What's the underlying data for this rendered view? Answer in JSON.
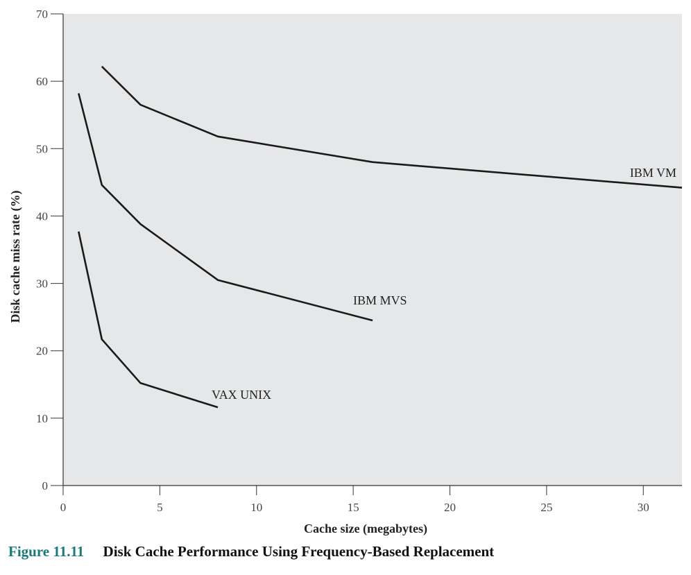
{
  "chart_data": {
    "type": "line",
    "xlabel": "Cache size (megabytes)",
    "ylabel": "Disk cache miss rate (%)",
    "xlim": [
      0,
      32
    ],
    "ylim": [
      0,
      70
    ],
    "xticks": [
      0,
      5,
      10,
      15,
      20,
      25,
      30
    ],
    "yticks": [
      0,
      10,
      20,
      30,
      40,
      50,
      60,
      70
    ],
    "grid": false,
    "background": "#e6e7e8",
    "line_color": "#1a1a1a",
    "series": [
      {
        "name": "IBM VM",
        "x": [
          2,
          4,
          8,
          16,
          32
        ],
        "y": [
          62.2,
          56.5,
          51.8,
          48,
          44.2
        ]
      },
      {
        "name": "IBM MVS",
        "x": [
          0.8,
          2,
          4,
          8,
          16
        ],
        "y": [
          58.2,
          44.6,
          38.8,
          30.5,
          24.5
        ]
      },
      {
        "name": "VAX UNIX",
        "x": [
          0.8,
          2,
          4,
          8
        ],
        "y": [
          37.7,
          21.7,
          15.2,
          11.6
        ]
      }
    ],
    "annotations": [
      {
        "text": "IBM VM",
        "series": 0
      },
      {
        "text": "IBM MVS",
        "series": 1
      },
      {
        "text": "VAX UNIX",
        "series": 2
      }
    ]
  },
  "caption": {
    "number": "Figure 11.11",
    "title": "Disk Cache Performance Using Frequency-Based Replacement"
  }
}
